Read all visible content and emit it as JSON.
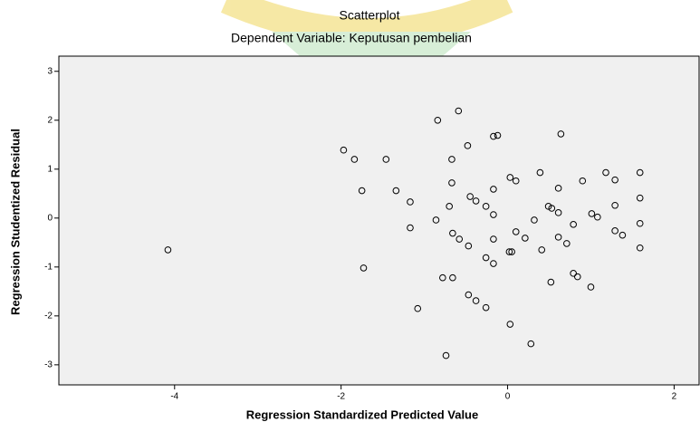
{
  "chart_data": {
    "type": "scatter",
    "title": "Scatterplot",
    "subtitle": "Dependent Variable: Keputusan pembelian",
    "x_label": "Regression Standardized Predicted Value",
    "y_label": "Regression Studentized Residual",
    "xlim": [
      -5.39,
      2.3
    ],
    "ylim": [
      -3.41,
      3.31
    ],
    "xticks": [
      -4,
      -2,
      0,
      2
    ],
    "yticks": [
      -3,
      -2,
      -1,
      0,
      1,
      2,
      3
    ],
    "grid": false,
    "color": "#000000",
    "background": "#f0f0f0",
    "x": [
      -4.08,
      -1.97,
      -1.84,
      -1.46,
      -1.75,
      -1.73,
      -1.34,
      -1.17,
      -1.17,
      -1.08,
      -0.84,
      -0.59,
      -0.48,
      -0.67,
      -0.67,
      -0.7,
      -0.86,
      -0.66,
      -0.58,
      -0.47,
      -0.45,
      -0.38,
      -0.26,
      -0.17,
      -0.17,
      -0.17,
      -0.26,
      -0.17,
      -0.17,
      -0.12,
      -0.78,
      -0.66,
      -0.47,
      -0.38,
      -0.26,
      -0.74,
      0.03,
      0.28,
      0.03,
      0.1,
      0.02,
      0.05,
      0.1,
      0.21,
      0.32,
      0.39,
      0.41,
      0.49,
      0.53,
      0.52,
      0.61,
      0.61,
      0.61,
      0.64,
      0.71,
      0.79,
      0.79,
      0.84,
      0.9,
      1.01,
      1.08,
      1.0,
      1.18,
      1.29,
      1.29,
      1.29,
      1.38,
      1.59,
      1.59,
      1.59,
      1.59
    ],
    "values": [
      -0.65,
      1.39,
      1.2,
      1.2,
      0.56,
      -1.02,
      0.56,
      0.33,
      -0.2,
      -1.85,
      2.0,
      2.19,
      1.48,
      1.2,
      0.72,
      0.24,
      -0.04,
      -0.31,
      -0.43,
      -0.57,
      0.44,
      0.35,
      0.24,
      0.07,
      0.59,
      -0.43,
      -0.81,
      -0.93,
      1.67,
      1.69,
      -1.22,
      -1.22,
      -1.57,
      -1.69,
      -1.83,
      -2.81,
      -2.17,
      -2.57,
      0.83,
      0.76,
      -0.69,
      -0.69,
      -0.28,
      -0.41,
      -0.04,
      0.93,
      -0.65,
      0.24,
      0.2,
      -1.31,
      0.61,
      0.11,
      -0.39,
      1.72,
      -0.52,
      -0.13,
      -1.13,
      -1.2,
      0.76,
      0.09,
      0.02,
      -1.41,
      0.93,
      0.78,
      0.26,
      -0.26,
      -0.35,
      0.93,
      0.41,
      -0.11,
      -0.61
    ]
  }
}
